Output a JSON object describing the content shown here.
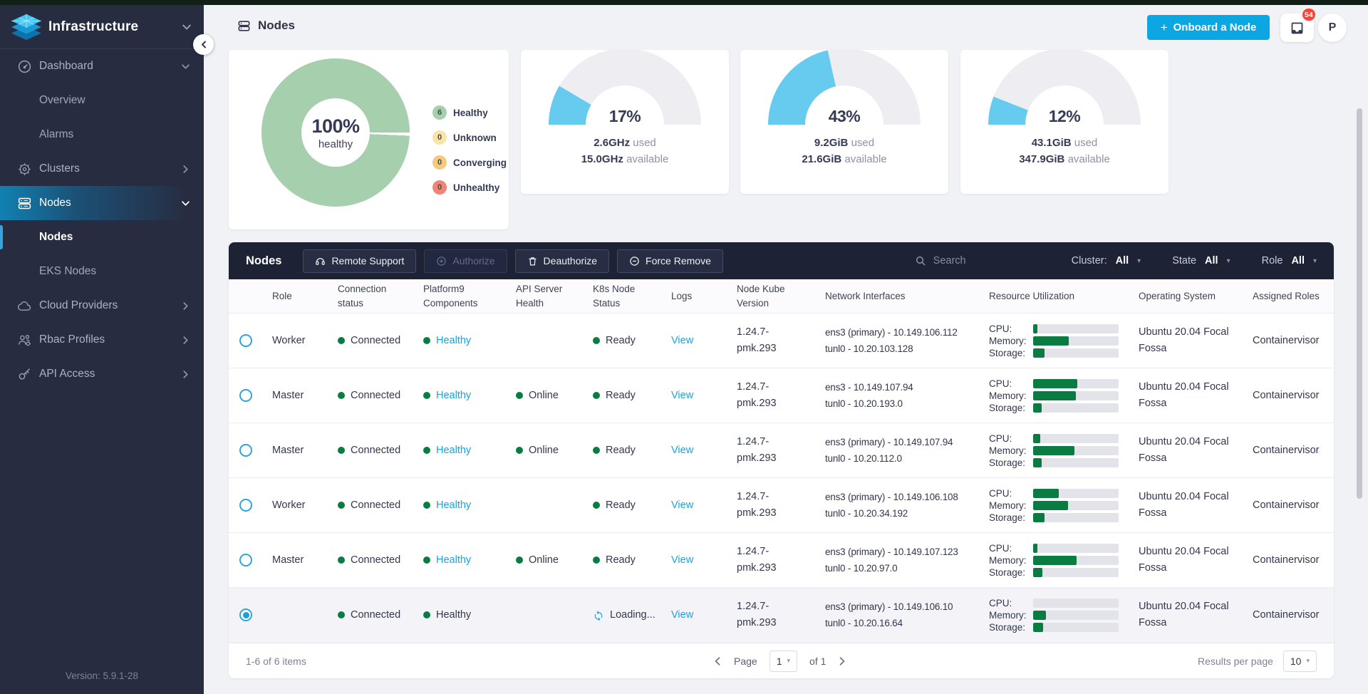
{
  "colors": {
    "accent": "#13a8e4",
    "green": "#0a7c41",
    "donut_green": "#a6cfae",
    "gauge_fill": "#66cbee",
    "gauge_track": "#ededf2",
    "badge_red": "#f4473c"
  },
  "sidebar": {
    "brand": "Infrastructure",
    "items": [
      {
        "label": "Dashboard"
      },
      {
        "label": "Overview"
      },
      {
        "label": "Alarms"
      },
      {
        "label": "Clusters"
      },
      {
        "label": "Nodes"
      },
      {
        "label": "Nodes"
      },
      {
        "label": "EKS Nodes"
      },
      {
        "label": "Cloud Providers"
      },
      {
        "label": "Rbac Profiles"
      },
      {
        "label": "API Access"
      }
    ],
    "version": "Version: 5.9.1-28"
  },
  "header": {
    "title": "Nodes",
    "onboard_plus": "+",
    "onboard_label": "Onboard a Node",
    "notification_count": "54",
    "avatar_initial": "P"
  },
  "cards": {
    "health": {
      "center_value": "100%",
      "center_label": "healthy",
      "legend": [
        {
          "count": "6",
          "label": "Healthy",
          "color": "#a6cfae"
        },
        {
          "count": "0",
          "label": "Unknown",
          "color": "#f8e3ab"
        },
        {
          "count": "0",
          "label": "Converging",
          "color": "#f6c983"
        },
        {
          "count": "0",
          "label": "Unhealthy",
          "color": "#f28377"
        }
      ]
    },
    "gauges": [
      {
        "percent": 17,
        "percent_label": "17%",
        "used_value": "2.6GHz",
        "used_word": "used",
        "available_value": "15.0GHz",
        "available_word": "available"
      },
      {
        "percent": 43,
        "percent_label": "43%",
        "used_value": "9.2GiB",
        "used_word": "used",
        "available_value": "21.6GiB",
        "available_word": "available"
      },
      {
        "percent": 12,
        "percent_label": "12%",
        "used_value": "43.1GiB",
        "used_word": "used",
        "available_value": "347.9GiB",
        "available_word": "available"
      }
    ]
  },
  "toolbar": {
    "title": "Nodes",
    "buttons": [
      {
        "label": "Remote Support",
        "icon": "headset-icon",
        "disabled": false
      },
      {
        "label": "Authorize",
        "icon": "circle-plus-icon",
        "disabled": true
      },
      {
        "label": "Deauthorize",
        "icon": "trash-icon",
        "disabled": false
      },
      {
        "label": "Force Remove",
        "icon": "circle-minus-icon",
        "disabled": false
      }
    ],
    "search_placeholder": "Search",
    "filters": [
      {
        "label": "Cluster:",
        "value": "All"
      },
      {
        "label": "State",
        "value": "All"
      },
      {
        "label": "Role",
        "value": "All"
      }
    ]
  },
  "table": {
    "columns": [
      "Role",
      "Connection status",
      "Platform9 Components",
      "API Server Health",
      "K8s Node Status",
      "Logs",
      "Node Kube Version",
      "Network Interfaces",
      "Resource Utilization",
      "Operating System",
      "Assigned Roles"
    ],
    "resource_labels": [
      "CPU:",
      "Memory:",
      "Storage:"
    ],
    "rows": [
      {
        "selected": false,
        "role": "Worker",
        "connection": "Connected",
        "p9_components": "Healthy",
        "p9_link": true,
        "api_health": "",
        "k8s_status": "Ready",
        "k8s_loading": false,
        "logs": "View",
        "kube_version": "1.24.7-pmk.293",
        "interfaces": [
          "ens3 (primary) - 10.149.106.112",
          "tunl0 - 10.20.103.128"
        ],
        "utilization": {
          "cpu": 5,
          "memory": 42,
          "storage": 13
        },
        "os": "Ubuntu 20.04 Focal Fossa",
        "assigned_roles": "Containervisor"
      },
      {
        "selected": false,
        "role": "Master",
        "connection": "Connected",
        "p9_components": "Healthy",
        "p9_link": true,
        "api_health": "Online",
        "k8s_status": "Ready",
        "k8s_loading": false,
        "logs": "View",
        "kube_version": "1.24.7-pmk.293",
        "interfaces": [
          "ens3 - 10.149.107.94",
          "tunl0 - 10.20.193.0"
        ],
        "utilization": {
          "cpu": 52,
          "memory": 50,
          "storage": 10
        },
        "os": "Ubuntu 20.04 Focal Fossa",
        "assigned_roles": "Containervisor"
      },
      {
        "selected": false,
        "role": "Master",
        "connection": "Connected",
        "p9_components": "Healthy",
        "p9_link": true,
        "api_health": "Online",
        "k8s_status": "Ready",
        "k8s_loading": false,
        "logs": "View",
        "kube_version": "1.24.7-pmk.293",
        "interfaces": [
          "ens3 (primary) - 10.149.107.94",
          "tunl0 - 10.20.112.0"
        ],
        "utilization": {
          "cpu": 8,
          "memory": 48,
          "storage": 10
        },
        "os": "Ubuntu 20.04 Focal Fossa",
        "assigned_roles": "Containervisor"
      },
      {
        "selected": false,
        "role": "Worker",
        "connection": "Connected",
        "p9_components": "Healthy",
        "p9_link": true,
        "api_health": "",
        "k8s_status": "Ready",
        "k8s_loading": false,
        "logs": "View",
        "kube_version": "1.24.7-pmk.293",
        "interfaces": [
          "ens3 (primary) - 10.149.106.108",
          "tunl0 - 10.20.34.192"
        ],
        "utilization": {
          "cpu": 30,
          "memory": 41,
          "storage": 13
        },
        "os": "Ubuntu 20.04 Focal Fossa",
        "assigned_roles": "Containervisor"
      },
      {
        "selected": false,
        "role": "Master",
        "connection": "Connected",
        "p9_components": "Healthy",
        "p9_link": true,
        "api_health": "Online",
        "k8s_status": "Ready",
        "k8s_loading": false,
        "logs": "View",
        "kube_version": "1.24.7-pmk.293",
        "interfaces": [
          "ens3 (primary) - 10.149.107.123",
          "tunl0 - 10.20.97.0"
        ],
        "utilization": {
          "cpu": 5,
          "memory": 51,
          "storage": 11
        },
        "os": "Ubuntu 20.04 Focal Fossa",
        "assigned_roles": "Containervisor"
      },
      {
        "selected": true,
        "role": "",
        "connection": "Connected",
        "p9_components": "Healthy",
        "p9_link": false,
        "api_health": "",
        "k8s_status": "Loading...",
        "k8s_loading": true,
        "logs": "View",
        "kube_version": "1.24.7-pmk.293",
        "interfaces": [
          "ens3 (primary) - 10.149.106.10",
          "tunl0 - 10.20.16.64"
        ],
        "utilization": {
          "cpu": 0,
          "memory": 15,
          "storage": 12
        },
        "os": "Ubuntu 20.04 Focal Fossa",
        "assigned_roles": "Containervisor"
      }
    ]
  },
  "footer": {
    "items_text": "1-6 of 6 items",
    "page_label": "Page",
    "page_value": "1",
    "of_text": "of 1",
    "results_label": "Results per page",
    "results_value": "10"
  }
}
